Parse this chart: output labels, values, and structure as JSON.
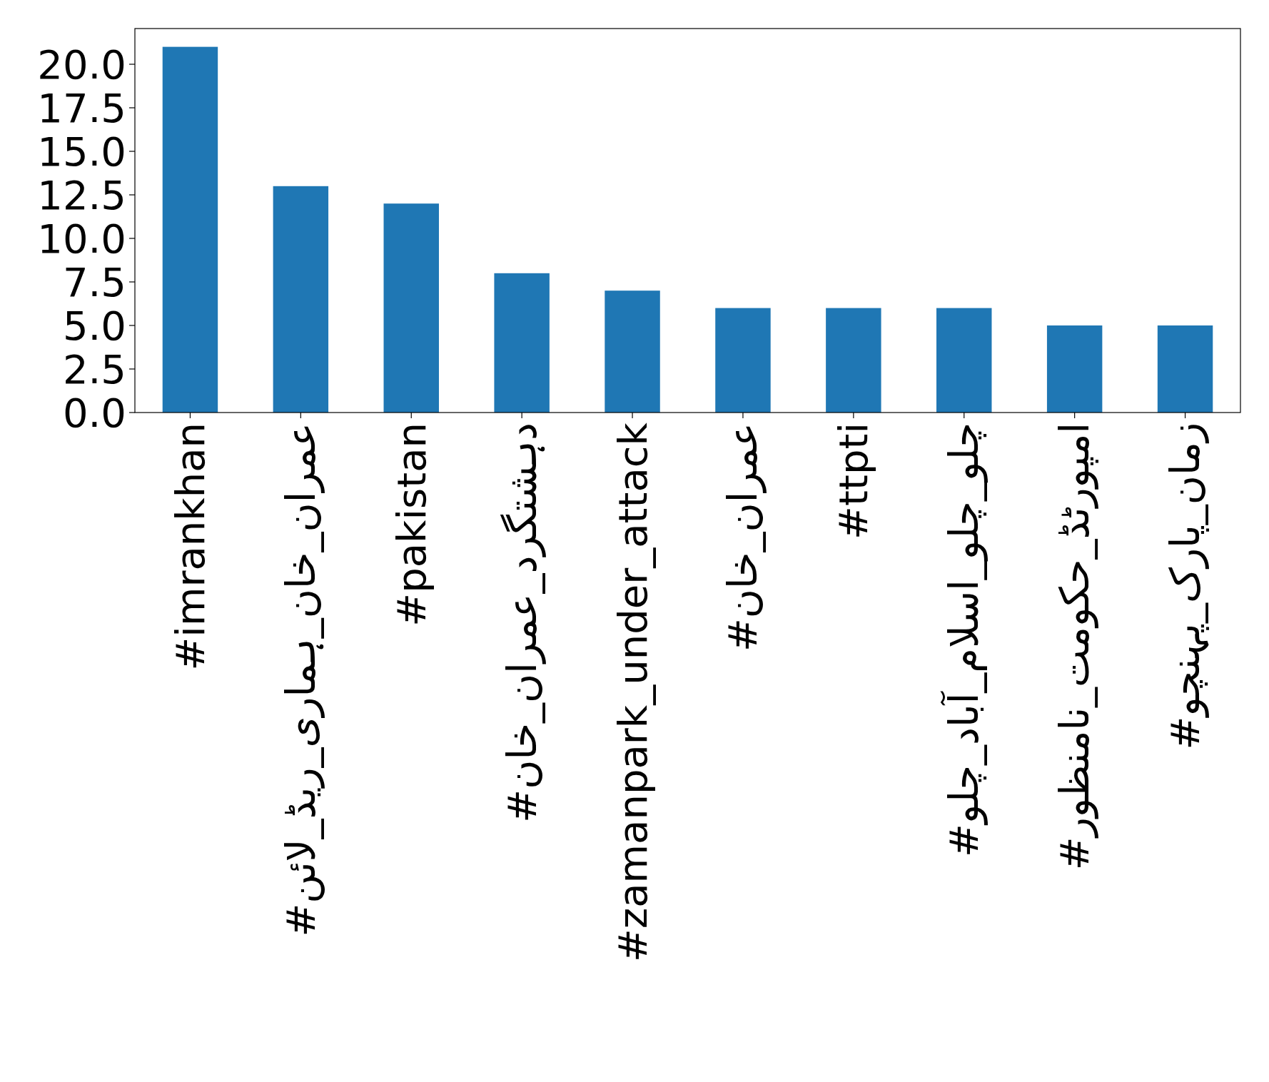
{
  "chart_data": {
    "type": "bar",
    "categories": [
      "#imrankhan",
      "#عمران_خان_ہماری_ریڈ_لائن",
      "#pakistan",
      "#دہشتگرد_عمران_خان",
      "#zamanpark_under_attack",
      "#عمران_خان",
      "#ttpti",
      "#چلو_چلو_اسلام_آباد_چلو",
      "#امپورٹڈ_حکومت_نامنظور",
      "#زمان_پارک_پہنچو"
    ],
    "values": [
      21,
      13,
      12,
      8,
      7,
      6,
      6,
      6,
      5,
      5
    ],
    "color": "#1f77b4",
    "ylim": [
      0,
      22.05
    ],
    "yticks": [
      {
        "value": 0,
        "label": "0.0"
      },
      {
        "value": 2.5,
        "label": "2.5"
      },
      {
        "value": 5,
        "label": "5.0"
      },
      {
        "value": 7.5,
        "label": "7.5"
      },
      {
        "value": 10,
        "label": "10.0"
      },
      {
        "value": 12.5,
        "label": "12.5"
      },
      {
        "value": 15,
        "label": "15.0"
      },
      {
        "value": 17.5,
        "label": "17.5"
      },
      {
        "value": 20,
        "label": "20.0"
      }
    ]
  }
}
